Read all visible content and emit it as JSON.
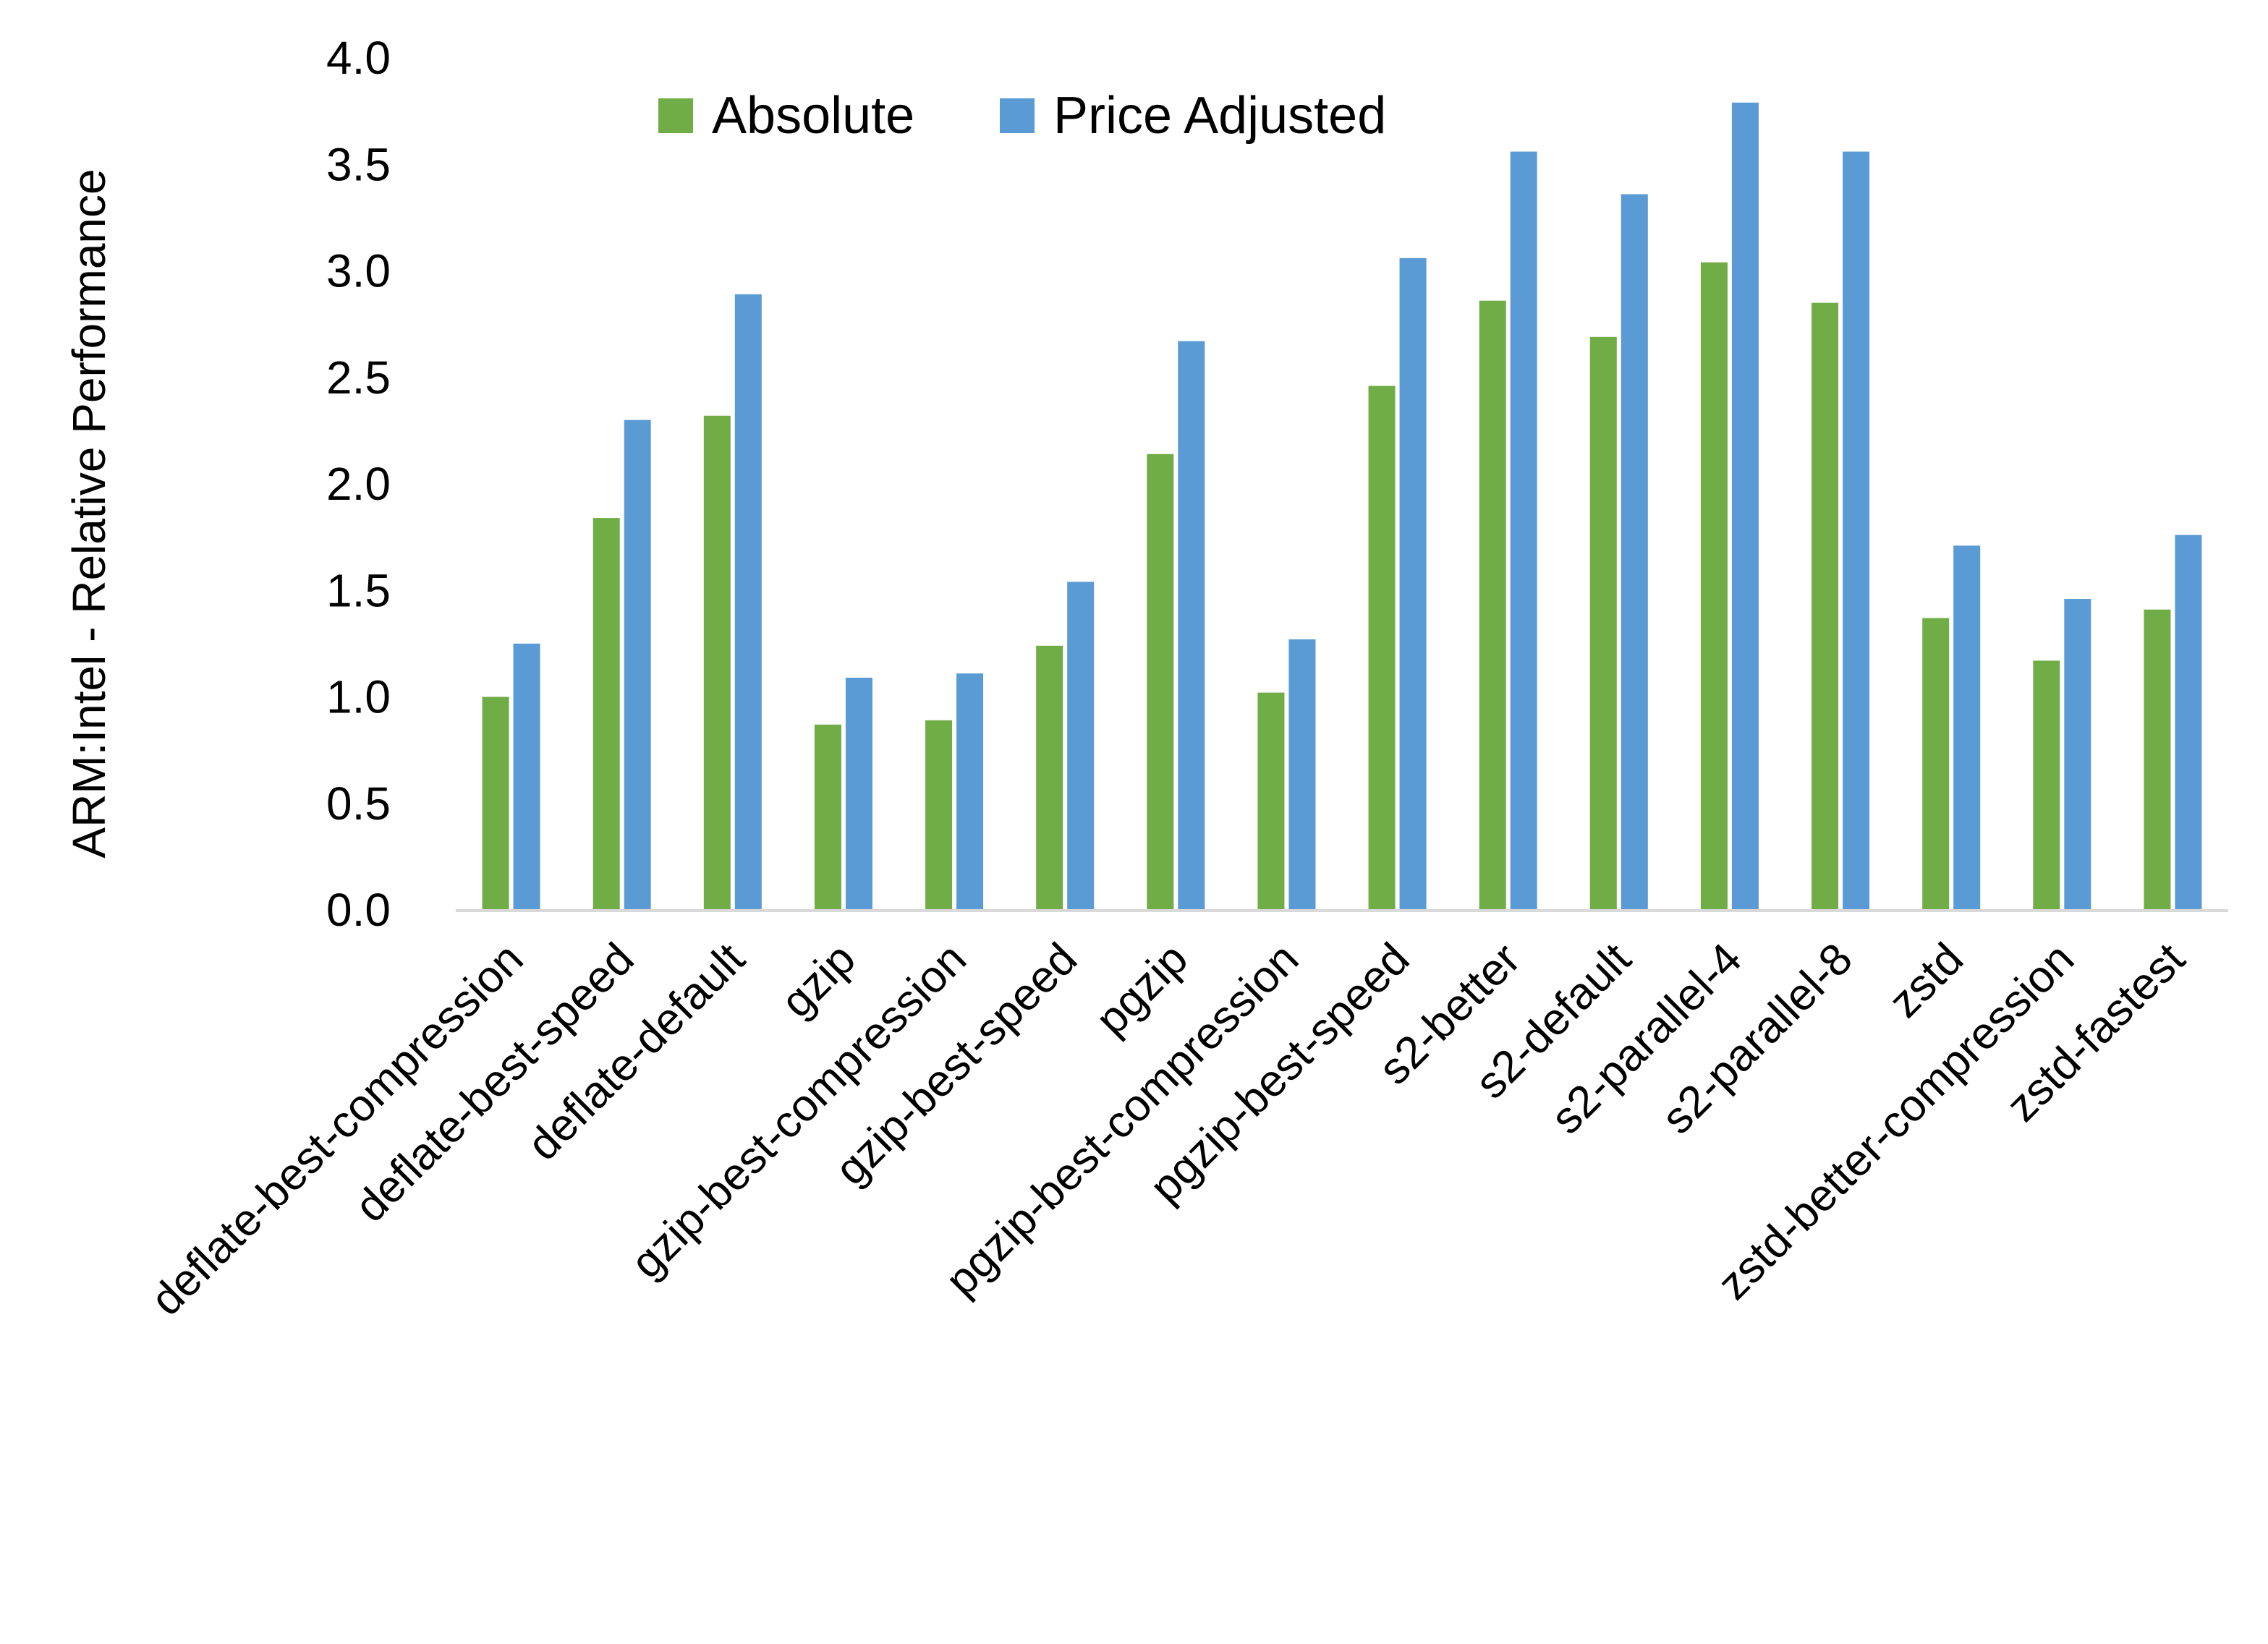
{
  "chart_data": {
    "type": "bar",
    "title": "",
    "xlabel": "",
    "ylabel": "ARM:Intel - Relative Performance",
    "ylim": [
      0,
      4.0
    ],
    "yticks": [
      "0.0",
      "0.5",
      "1.0",
      "1.5",
      "2.0",
      "2.5",
      "3.0",
      "3.5",
      "4.0"
    ],
    "grid": false,
    "legend_position": "top-center",
    "categories": [
      "deflate-best-compression",
      "deflate-best-speed",
      "deflate-default",
      "gzip",
      "gzip-best-compression",
      "gzip-best-speed",
      "pgzip",
      "pgzip-best-compression",
      "pgzip-best-speed",
      "s2-better",
      "s2-default",
      "s2-parallel-4",
      "s2-parallel-8",
      "zstd",
      "zstd-better-compression",
      "zstd-fastest"
    ],
    "series": [
      {
        "name": "Absolute",
        "color": "#70AD47",
        "values": [
          1.0,
          1.84,
          2.32,
          0.87,
          0.89,
          1.24,
          2.14,
          1.02,
          2.46,
          2.86,
          2.69,
          3.04,
          2.85,
          1.37,
          1.17,
          1.41
        ]
      },
      {
        "name": "Price Adjusted",
        "color": "#5B9BD5",
        "values": [
          1.25,
          2.3,
          2.89,
          1.09,
          1.11,
          1.54,
          2.67,
          1.27,
          3.06,
          3.56,
          3.36,
          3.79,
          3.56,
          1.71,
          1.46,
          1.76
        ]
      }
    ]
  }
}
